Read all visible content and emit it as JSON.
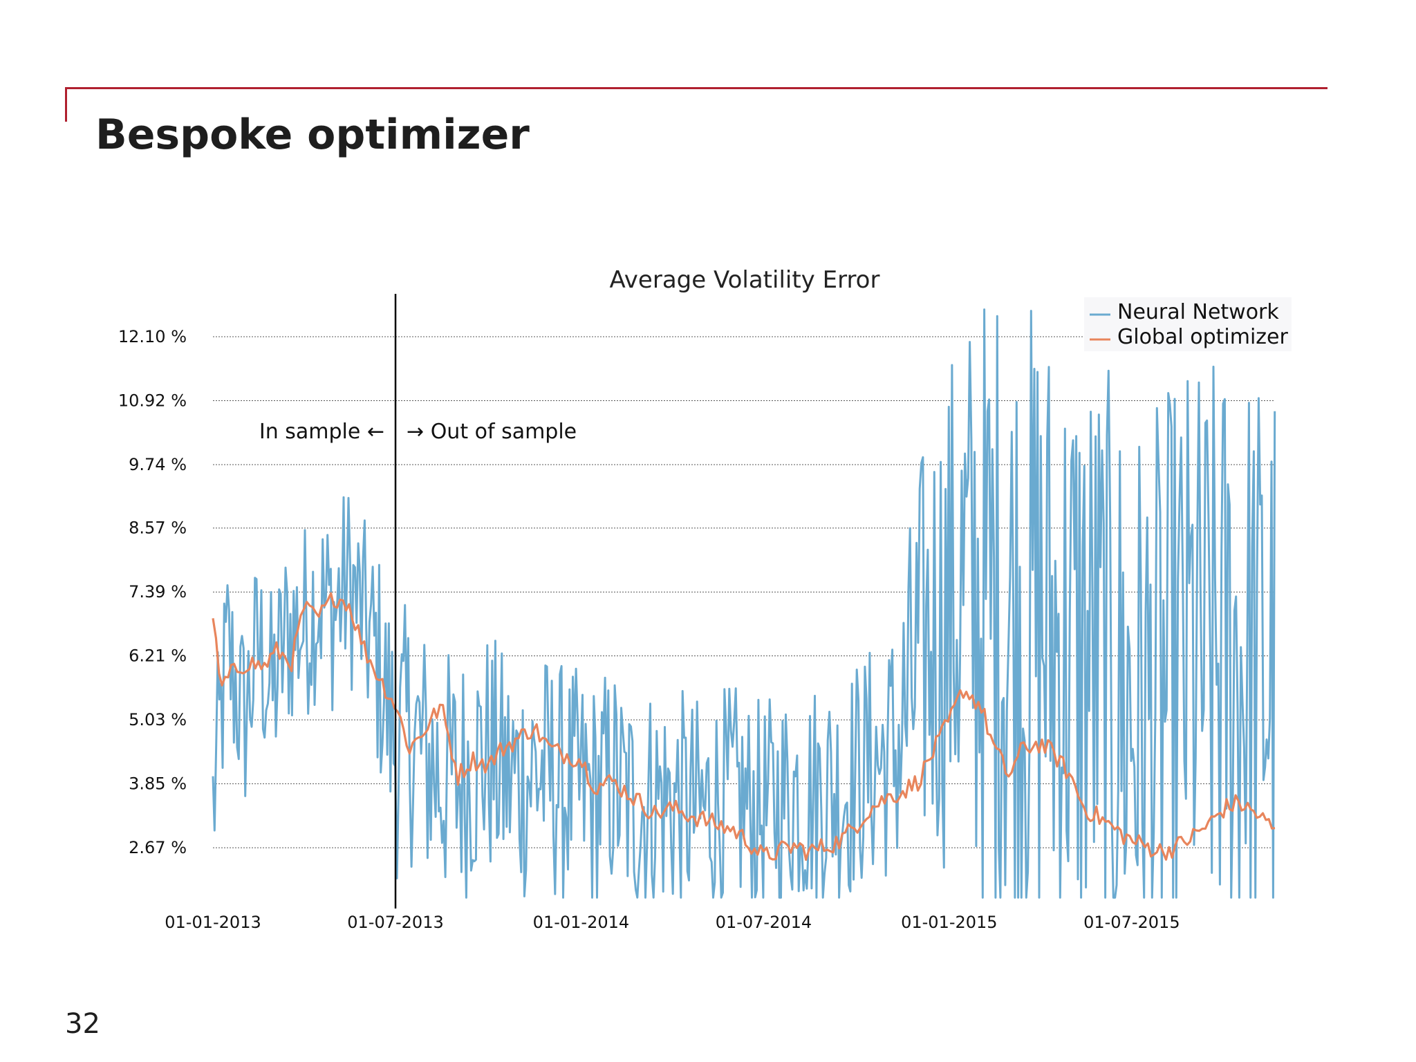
{
  "slide": {
    "title": "Bespoke optimizer",
    "page_number": "32",
    "accent_color": "#b0202f"
  },
  "chart_data": {
    "type": "line",
    "title": "Average Volatility Error",
    "xlabel": "",
    "ylabel": "",
    "y_tick_labels": [
      "2.67 %",
      "3.85 %",
      "5.03 %",
      "6.21 %",
      "7.39 %",
      "8.57 %",
      "9.74 %",
      "10.92 %",
      "12.10 %"
    ],
    "y_ticks": [
      2.67,
      3.85,
      5.03,
      6.21,
      7.39,
      8.57,
      9.74,
      10.92,
      12.1
    ],
    "ylim": [
      1.6,
      12.7
    ],
    "x_tick_labels": [
      "01-01-2013",
      "01-07-2013",
      "01-01-2014",
      "01-07-2014",
      "01-01-2015",
      "01-07-2015"
    ],
    "x_ticks": [
      "2013-01-01",
      "2013-07-01",
      "2014-01-01",
      "2014-07-01",
      "2015-01-01",
      "2015-07-01"
    ],
    "xlim": [
      "2013-01-01",
      "2015-11-20"
    ],
    "grid": "horizontal dotted",
    "legend_position": "top-right",
    "split": {
      "date": "2013-07-01",
      "left_label": "In sample ←",
      "right_label": "→ Out of sample"
    },
    "series": [
      {
        "name": "Neural Network",
        "color": "#6aaad0",
        "points": [
          [
            "2013-01-01",
            3.4
          ],
          [
            "2013-01-15",
            6.3
          ],
          [
            "2013-02-01",
            5.0
          ],
          [
            "2013-02-15",
            6.4
          ],
          [
            "2013-03-01",
            5.5
          ],
          [
            "2013-03-15",
            6.6
          ],
          [
            "2013-04-01",
            6.8
          ],
          [
            "2013-04-15",
            7.3
          ],
          [
            "2013-05-01",
            7.0
          ],
          [
            "2013-05-15",
            7.6
          ],
          [
            "2013-06-01",
            6.8
          ],
          [
            "2013-06-15",
            6.0
          ],
          [
            "2013-07-01",
            4.5
          ],
          [
            "2013-07-15",
            4.8
          ],
          [
            "2013-08-01",
            4.3
          ],
          [
            "2013-08-15",
            4.0
          ],
          [
            "2013-09-01",
            3.9
          ],
          [
            "2013-09-15",
            4.2
          ],
          [
            "2013-10-01",
            4.4
          ],
          [
            "2013-10-15",
            4.0
          ],
          [
            "2013-11-01",
            3.9
          ],
          [
            "2013-11-15",
            4.1
          ],
          [
            "2013-12-01",
            4.0
          ],
          [
            "2013-12-15",
            3.8
          ],
          [
            "2014-01-01",
            3.7
          ],
          [
            "2014-01-15",
            3.6
          ],
          [
            "2014-02-01",
            3.9
          ],
          [
            "2014-02-15",
            3.5
          ],
          [
            "2014-03-01",
            3.4
          ],
          [
            "2014-03-15",
            3.6
          ],
          [
            "2014-04-01",
            3.5
          ],
          [
            "2014-04-15",
            3.4
          ],
          [
            "2014-05-01",
            3.3
          ],
          [
            "2014-05-15",
            3.5
          ],
          [
            "2014-06-01",
            3.6
          ],
          [
            "2014-06-15",
            3.4
          ],
          [
            "2014-07-01",
            3.3
          ],
          [
            "2014-07-15",
            3.5
          ],
          [
            "2014-08-01",
            3.7
          ],
          [
            "2014-08-15",
            3.6
          ],
          [
            "2014-09-01",
            3.8
          ],
          [
            "2014-09-15",
            3.7
          ],
          [
            "2014-10-01",
            4.0
          ],
          [
            "2014-10-15",
            4.2
          ],
          [
            "2014-11-01",
            4.3
          ],
          [
            "2014-11-15",
            4.8
          ],
          [
            "2014-12-01",
            6.0
          ],
          [
            "2014-12-15",
            6.6
          ],
          [
            "2015-01-01",
            7.0
          ],
          [
            "2015-01-15",
            7.4
          ],
          [
            "2015-02-01",
            7.2
          ],
          [
            "2015-02-15",
            7.0
          ],
          [
            "2015-03-01",
            6.8
          ],
          [
            "2015-03-15",
            6.6
          ],
          [
            "2015-04-01",
            6.9
          ],
          [
            "2015-04-15",
            6.4
          ],
          [
            "2015-05-01",
            6.2
          ],
          [
            "2015-05-15",
            6.3
          ],
          [
            "2015-06-01",
            5.9
          ],
          [
            "2015-06-15",
            5.5
          ],
          [
            "2015-07-01",
            5.2
          ],
          [
            "2015-07-15",
            5.0
          ],
          [
            "2015-08-01",
            5.3
          ],
          [
            "2015-08-15",
            5.8
          ],
          [
            "2015-09-01",
            6.1
          ],
          [
            "2015-09-15",
            6.0
          ],
          [
            "2015-10-01",
            6.2
          ],
          [
            "2015-10-15",
            6.1
          ],
          [
            "2015-11-01",
            6.0
          ],
          [
            "2015-11-20",
            5.9
          ]
        ],
        "volatility_envelope": [
          [
            "2013-01-01",
            1.0
          ],
          [
            "2013-06-01",
            1.0
          ],
          [
            "2013-07-01",
            1.3
          ],
          [
            "2014-01-01",
            1.2
          ],
          [
            "2014-07-01",
            1.1
          ],
          [
            "2014-11-01",
            1.2
          ],
          [
            "2014-12-01",
            2.0
          ],
          [
            "2015-02-15",
            3.3
          ],
          [
            "2015-07-01",
            3.0
          ],
          [
            "2015-11-20",
            3.0
          ]
        ]
      },
      {
        "name": "Global optimizer",
        "color": "#e8855c",
        "points": [
          [
            "2013-01-01",
            7.0
          ],
          [
            "2013-01-08",
            5.6
          ],
          [
            "2013-01-20",
            5.9
          ],
          [
            "2013-02-05",
            6.1
          ],
          [
            "2013-02-20",
            6.0
          ],
          [
            "2013-03-05",
            6.3
          ],
          [
            "2013-03-20",
            6.1
          ],
          [
            "2013-04-01",
            7.1
          ],
          [
            "2013-04-15",
            6.9
          ],
          [
            "2013-05-01",
            7.3
          ],
          [
            "2013-05-15",
            7.2
          ],
          [
            "2013-06-01",
            6.3
          ],
          [
            "2013-06-15",
            5.8
          ],
          [
            "2013-07-01",
            5.3
          ],
          [
            "2013-07-15",
            4.5
          ],
          [
            "2013-08-01",
            4.9
          ],
          [
            "2013-08-15",
            5.3
          ],
          [
            "2013-09-01",
            4.0
          ],
          [
            "2013-09-15",
            4.3
          ],
          [
            "2013-10-01",
            4.2
          ],
          [
            "2013-10-15",
            4.5
          ],
          [
            "2013-11-01",
            4.7
          ],
          [
            "2013-11-15",
            4.9
          ],
          [
            "2013-12-01",
            4.5
          ],
          [
            "2013-12-15",
            4.4
          ],
          [
            "2014-01-01",
            4.3
          ],
          [
            "2014-01-15",
            3.8
          ],
          [
            "2014-02-01",
            3.9
          ],
          [
            "2014-02-15",
            3.7
          ],
          [
            "2014-03-01",
            3.5
          ],
          [
            "2014-03-15",
            3.3
          ],
          [
            "2014-04-01",
            3.4
          ],
          [
            "2014-04-15",
            3.3
          ],
          [
            "2014-05-01",
            3.2
          ],
          [
            "2014-05-15",
            3.1
          ],
          [
            "2014-06-01",
            3.0
          ],
          [
            "2014-06-15",
            2.8
          ],
          [
            "2014-07-01",
            2.5
          ],
          [
            "2014-07-15",
            2.6
          ],
          [
            "2014-08-01",
            2.7
          ],
          [
            "2014-08-15",
            2.6
          ],
          [
            "2014-09-01",
            2.7
          ],
          [
            "2014-09-15",
            2.8
          ],
          [
            "2014-10-01",
            3.1
          ],
          [
            "2014-10-15",
            3.4
          ],
          [
            "2014-11-01",
            3.6
          ],
          [
            "2014-11-15",
            3.7
          ],
          [
            "2014-12-01",
            3.9
          ],
          [
            "2014-12-15",
            4.4
          ],
          [
            "2015-01-01",
            5.0
          ],
          [
            "2015-01-15",
            5.6
          ],
          [
            "2015-02-01",
            5.3
          ],
          [
            "2015-02-15",
            4.5
          ],
          [
            "2015-03-01",
            4.0
          ],
          [
            "2015-03-15",
            4.5
          ],
          [
            "2015-04-01",
            4.6
          ],
          [
            "2015-04-15",
            4.4
          ],
          [
            "2015-05-01",
            4.0
          ],
          [
            "2015-05-15",
            3.4
          ],
          [
            "2015-06-01",
            3.2
          ],
          [
            "2015-06-15",
            3.0
          ],
          [
            "2015-07-01",
            2.8
          ],
          [
            "2015-07-15",
            2.7
          ],
          [
            "2015-08-01",
            2.6
          ],
          [
            "2015-08-15",
            2.7
          ],
          [
            "2015-09-01",
            2.9
          ],
          [
            "2015-09-15",
            3.1
          ],
          [
            "2015-10-01",
            3.4
          ],
          [
            "2015-10-15",
            3.5
          ],
          [
            "2015-11-01",
            3.3
          ],
          [
            "2015-11-20",
            3.0
          ]
        ]
      }
    ]
  }
}
